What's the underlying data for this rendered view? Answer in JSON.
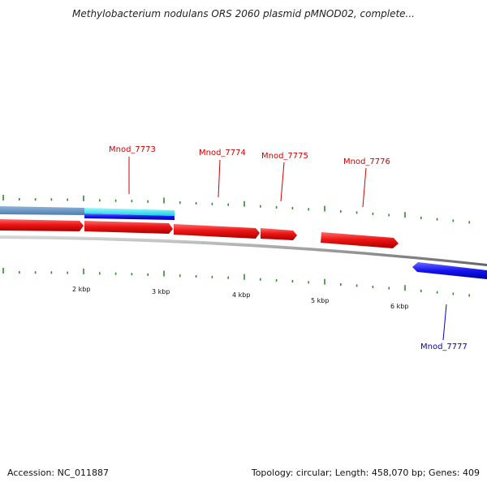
{
  "title": "Methylobacterium nodulans ORS 2060 plasmid pMNOD02, complete...",
  "footer": {
    "accession": "Accession: NC_011887",
    "summary": "Topology: circular; Length: 458,070 bp; Genes: 409"
  },
  "colors": {
    "forward_gene": "#e61010",
    "reverse_gene": "#1a1aee",
    "label_forward": "#cc0000",
    "label_reverse": "#0000cc",
    "tick": "#2e8b2e",
    "backbone": "#9a9a9a",
    "feature_light": "#5f93c4",
    "feature_cyan": "#27e3ef"
  },
  "axis_labels": [
    "2 kbp",
    "3 kbp",
    "4 kbp",
    "5 kbp",
    "6 kbp"
  ],
  "genes": [
    {
      "name": "Mnod_7773",
      "strand": "forward"
    },
    {
      "name": "Mnod_7774",
      "strand": "forward"
    },
    {
      "name": "Mnod_7775",
      "strand": "forward"
    },
    {
      "name": "Mnod_7776",
      "strand": "forward"
    },
    {
      "name": "Mnod_7777",
      "strand": "reverse"
    }
  ]
}
